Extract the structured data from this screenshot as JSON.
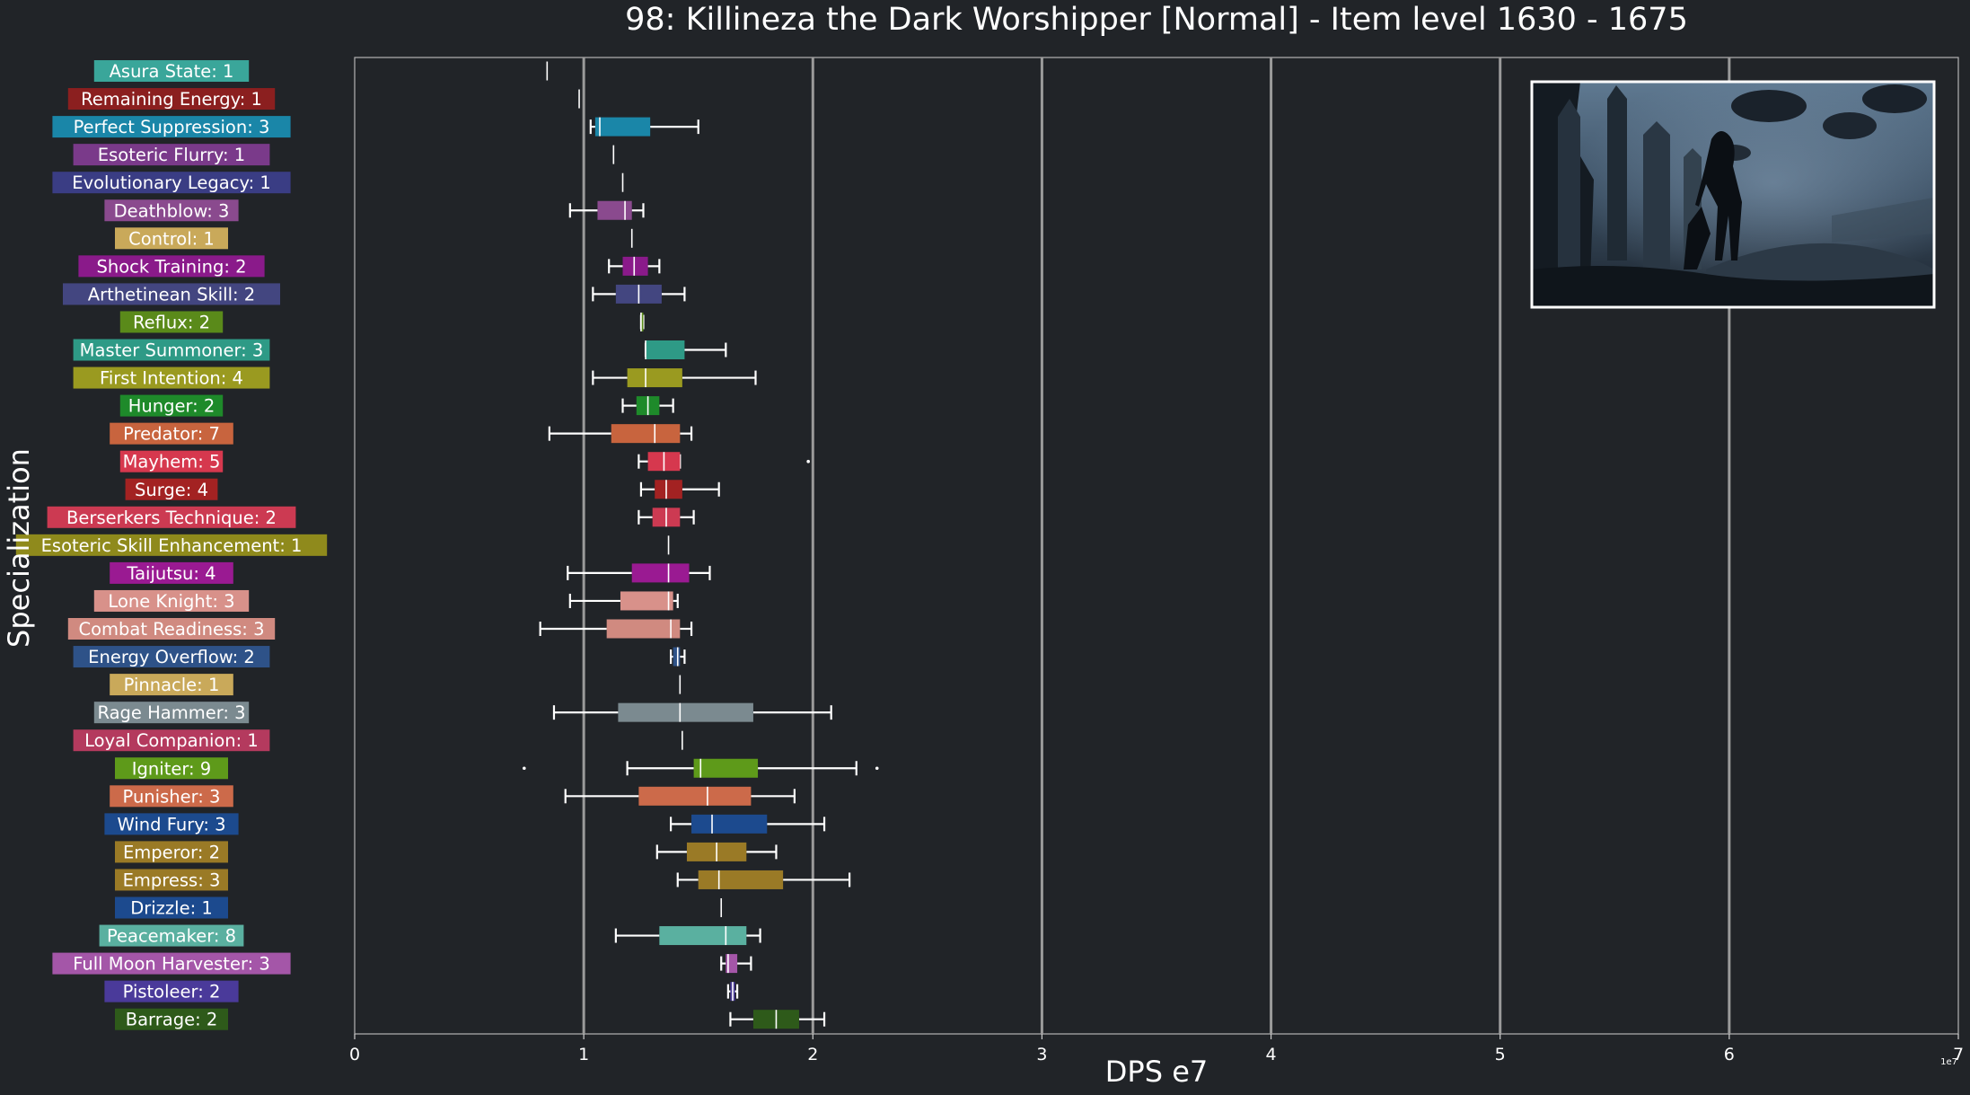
{
  "chart_data": {
    "type": "box",
    "title": "98: Killineza the Dark Worshipper [Normal] - Item level 1630 - 1675",
    "xlabel": "DPS e7",
    "ylabel": "Specialization",
    "x_exponent_label": "1e7",
    "xlim": [
      0,
      7
    ],
    "x_ticks": [
      0,
      1,
      2,
      3,
      4,
      5,
      6,
      7
    ],
    "grid": "vertical lines at integer ticks",
    "inset_image": "boss arena screenshot, top-right",
    "categories": [
      {
        "label": "Asura State: 1",
        "color": "#3aa69a",
        "q1": 0.84,
        "median": 0.84,
        "q3": 0.84,
        "wlo": 0.84,
        "whi": 0.84,
        "outliers": []
      },
      {
        "label": "Remaining Energy: 1",
        "color": "#8b1f1f",
        "q1": 0.98,
        "median": 0.98,
        "q3": 0.98,
        "wlo": 0.98,
        "whi": 0.98,
        "outliers": []
      },
      {
        "label": "Perfect Suppression: 3",
        "color": "#1a86a8",
        "q1": 1.05,
        "median": 1.07,
        "q3": 1.29,
        "wlo": 1.03,
        "whi": 1.5,
        "outliers": []
      },
      {
        "label": "Esoteric Flurry: 1",
        "color": "#7a3a8a",
        "q1": 1.13,
        "median": 1.13,
        "q3": 1.13,
        "wlo": 1.13,
        "whi": 1.13,
        "outliers": []
      },
      {
        "label": "Evolutionary Legacy: 1",
        "color": "#3a3d84",
        "q1": 1.17,
        "median": 1.17,
        "q3": 1.17,
        "wlo": 1.17,
        "whi": 1.17,
        "outliers": []
      },
      {
        "label": "Deathblow: 3",
        "color": "#8a4a8e",
        "q1": 1.06,
        "median": 1.18,
        "q3": 1.21,
        "wlo": 0.94,
        "whi": 1.26,
        "outliers": []
      },
      {
        "label": "Control: 1",
        "color": "#c9a95a",
        "q1": 1.21,
        "median": 1.21,
        "q3": 1.21,
        "wlo": 1.21,
        "whi": 1.21,
        "outliers": []
      },
      {
        "label": "Shock Training: 2",
        "color": "#8a1a8a",
        "q1": 1.17,
        "median": 1.22,
        "q3": 1.28,
        "wlo": 1.11,
        "whi": 1.33,
        "outliers": []
      },
      {
        "label": "Arthetinean Skill: 2",
        "color": "#434680",
        "q1": 1.14,
        "median": 1.24,
        "q3": 1.34,
        "wlo": 1.04,
        "whi": 1.44,
        "outliers": []
      },
      {
        "label": "Reflux: 2",
        "color": "#5a8a1a",
        "q1": 1.25,
        "median": 1.25,
        "q3": 1.26,
        "wlo": 1.25,
        "whi": 1.26,
        "outliers": []
      },
      {
        "label": "Master Summoner: 3",
        "color": "#2e9a86",
        "q1": 1.27,
        "median": 1.27,
        "q3": 1.44,
        "wlo": 1.27,
        "whi": 1.62,
        "outliers": []
      },
      {
        "label": "First Intention: 4",
        "color": "#9a9a20",
        "q1": 1.19,
        "median": 1.27,
        "q3": 1.43,
        "wlo": 1.04,
        "whi": 1.75,
        "outliers": []
      },
      {
        "label": "Hunger: 2",
        "color": "#1e8a2a",
        "q1": 1.23,
        "median": 1.28,
        "q3": 1.33,
        "wlo": 1.17,
        "whi": 1.39,
        "outliers": []
      },
      {
        "label": "Predator: 7",
        "color": "#c8643e",
        "q1": 1.12,
        "median": 1.31,
        "q3": 1.42,
        "wlo": 0.85,
        "whi": 1.47,
        "outliers": []
      },
      {
        "label": "Mayhem: 5",
        "color": "#d6384e",
        "q1": 1.28,
        "median": 1.35,
        "q3": 1.42,
        "wlo": 1.24,
        "whi": 1.42,
        "outliers": [
          1.98
        ]
      },
      {
        "label": "Surge: 4",
        "color": "#a32222",
        "q1": 1.31,
        "median": 1.36,
        "q3": 1.43,
        "wlo": 1.25,
        "whi": 1.59,
        "outliers": []
      },
      {
        "label": "Berserkers Technique: 2",
        "color": "#cc3a52",
        "q1": 1.3,
        "median": 1.36,
        "q3": 1.42,
        "wlo": 1.24,
        "whi": 1.48,
        "outliers": []
      },
      {
        "label": "Esoteric Skill Enhancement: 1",
        "color": "#8f8a1c",
        "q1": 1.37,
        "median": 1.37,
        "q3": 1.37,
        "wlo": 1.37,
        "whi": 1.37,
        "outliers": []
      },
      {
        "label": "Taijutsu: 4",
        "color": "#9a1a92",
        "q1": 1.21,
        "median": 1.37,
        "q3": 1.46,
        "wlo": 0.93,
        "whi": 1.55,
        "outliers": []
      },
      {
        "label": "Lone Knight: 3",
        "color": "#d8918a",
        "q1": 1.16,
        "median": 1.37,
        "q3": 1.39,
        "wlo": 0.94,
        "whi": 1.41,
        "outliers": []
      },
      {
        "label": "Combat Readiness: 3",
        "color": "#d08a80",
        "q1": 1.1,
        "median": 1.38,
        "q3": 1.42,
        "wlo": 0.81,
        "whi": 1.47,
        "outliers": []
      },
      {
        "label": "Energy Overflow: 2",
        "color": "#2e5288",
        "q1": 1.39,
        "median": 1.41,
        "q3": 1.42,
        "wlo": 1.38,
        "whi": 1.44,
        "outliers": []
      },
      {
        "label": "Pinnacle: 1",
        "color": "#c9a95a",
        "q1": 1.42,
        "median": 1.42,
        "q3": 1.42,
        "wlo": 1.42,
        "whi": 1.42,
        "outliers": []
      },
      {
        "label": "Rage Hammer: 3",
        "color": "#7b8a90",
        "q1": 1.15,
        "median": 1.42,
        "q3": 1.74,
        "wlo": 0.87,
        "whi": 2.08,
        "outliers": []
      },
      {
        "label": "Loyal Companion: 1",
        "color": "#b43a5e",
        "q1": 1.43,
        "median": 1.43,
        "q3": 1.43,
        "wlo": 1.43,
        "whi": 1.43,
        "outliers": []
      },
      {
        "label": "Igniter: 9",
        "color": "#5e9a1a",
        "q1": 1.48,
        "median": 1.51,
        "q3": 1.76,
        "wlo": 1.19,
        "whi": 2.19,
        "outliers": [
          0.74,
          2.28
        ]
      },
      {
        "label": "Punisher: 3",
        "color": "#cc6a4a",
        "q1": 1.24,
        "median": 1.54,
        "q3": 1.73,
        "wlo": 0.92,
        "whi": 1.92,
        "outliers": []
      },
      {
        "label": "Wind Fury: 3",
        "color": "#1c4a8e",
        "q1": 1.47,
        "median": 1.56,
        "q3": 1.8,
        "wlo": 1.38,
        "whi": 2.05,
        "outliers": []
      },
      {
        "label": "Emperor: 2",
        "color": "#9a7a26",
        "q1": 1.45,
        "median": 1.58,
        "q3": 1.71,
        "wlo": 1.32,
        "whi": 1.84,
        "outliers": []
      },
      {
        "label": "Empress: 3",
        "color": "#9a7a26",
        "q1": 1.5,
        "median": 1.59,
        "q3": 1.87,
        "wlo": 1.41,
        "whi": 2.16,
        "outliers": []
      },
      {
        "label": "Drizzle: 1",
        "color": "#1c4a8e",
        "q1": 1.6,
        "median": 1.6,
        "q3": 1.6,
        "wlo": 1.6,
        "whi": 1.6,
        "outliers": []
      },
      {
        "label": "Peacemaker: 8",
        "color": "#5ab0a0",
        "q1": 1.33,
        "median": 1.62,
        "q3": 1.71,
        "wlo": 1.14,
        "whi": 1.77,
        "outliers": []
      },
      {
        "label": "Full Moon Harvester: 3",
        "color": "#a456a8",
        "q1": 1.62,
        "median": 1.63,
        "q3": 1.67,
        "wlo": 1.6,
        "whi": 1.73,
        "outliers": []
      },
      {
        "label": "Pistoleer: 2",
        "color": "#4a3a9a",
        "q1": 1.64,
        "median": 1.65,
        "q3": 1.66,
        "wlo": 1.63,
        "whi": 1.67,
        "outliers": []
      },
      {
        "label": "Barrage: 2",
        "color": "#2e5a1a",
        "q1": 1.74,
        "median": 1.84,
        "q3": 1.94,
        "wlo": 1.64,
        "whi": 2.05,
        "outliers": []
      }
    ]
  }
}
